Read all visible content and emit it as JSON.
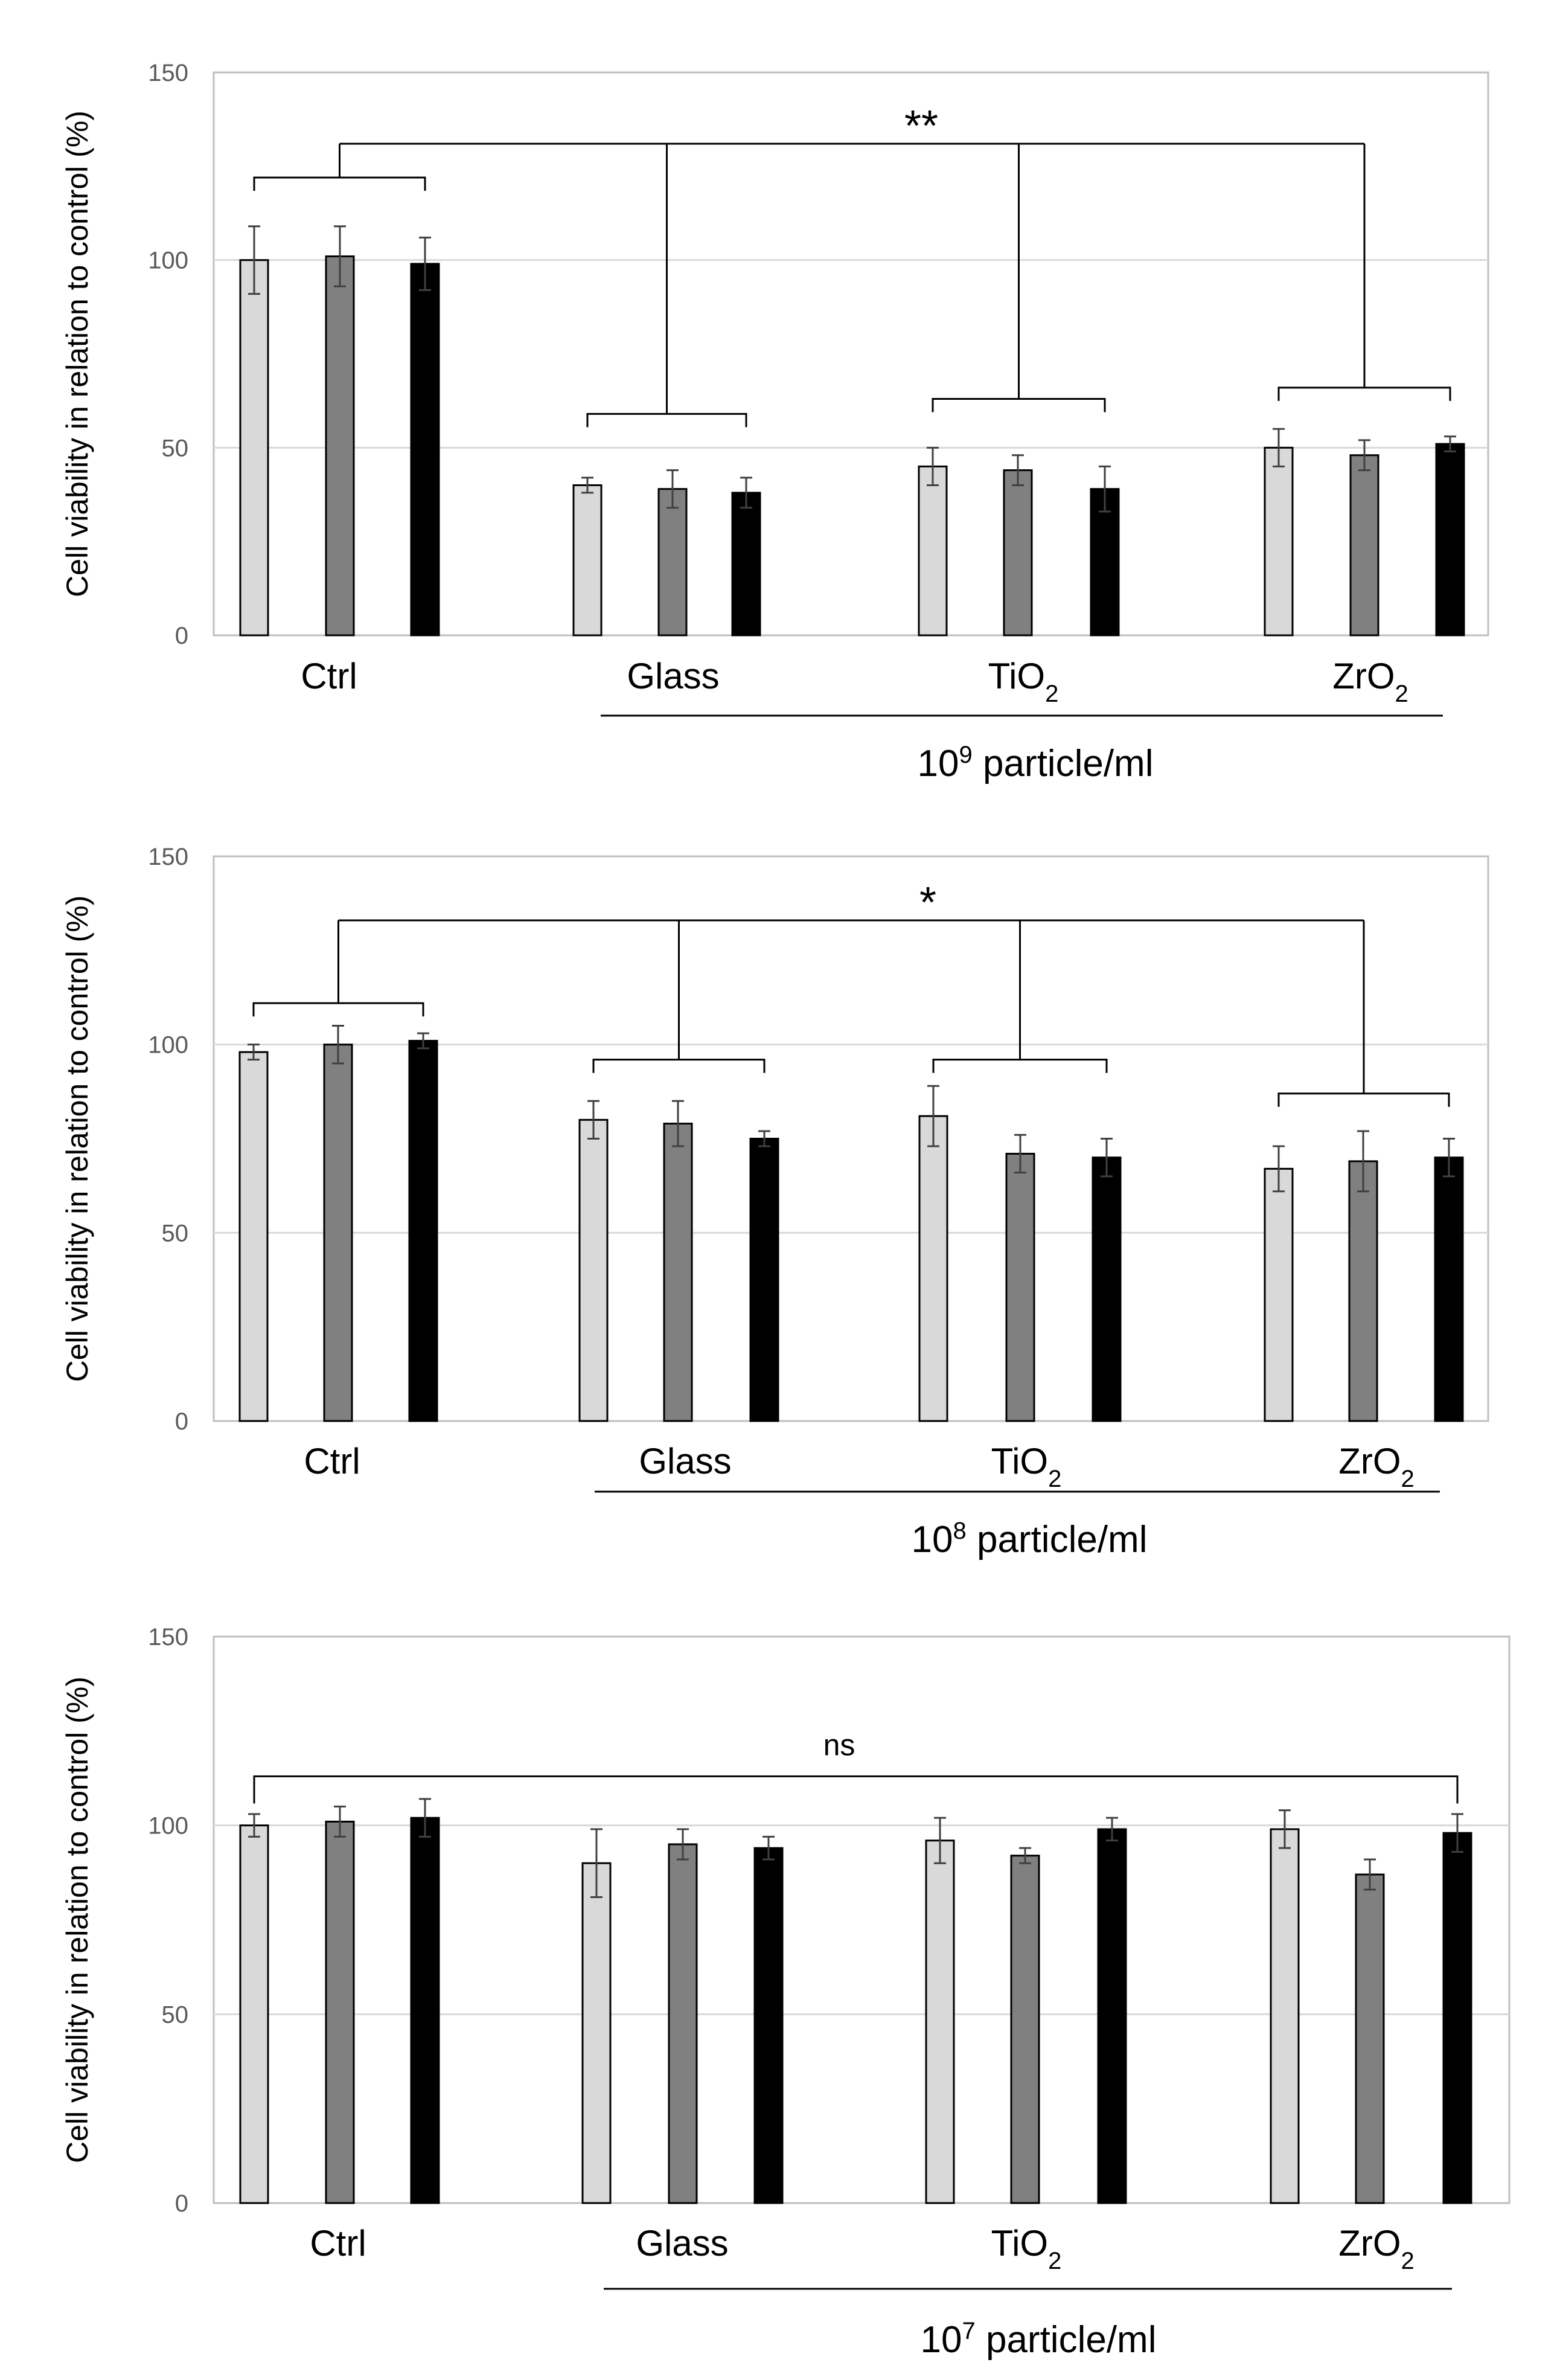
{
  "chart_data": [
    {
      "type": "bar",
      "ylabel": "Cell viability in relation to control (%)",
      "ylim": [
        0,
        150
      ],
      "yticks": [
        "0",
        "50",
        "100",
        "150"
      ],
      "grid": true,
      "series_colors": [
        "#d9d9d9",
        "#808080",
        "#000000"
      ],
      "categories": [
        {
          "label": "Ctrl",
          "sub": ""
        },
        {
          "label": "Glass",
          "sub": ""
        },
        {
          "label": "TiO",
          "sub": "2"
        },
        {
          "label": "ZrO",
          "sub": "2"
        }
      ],
      "values": [
        [
          100,
          101,
          99
        ],
        [
          40,
          39,
          38
        ],
        [
          45,
          44,
          39
        ],
        [
          50,
          48,
          51
        ]
      ],
      "errors": [
        [
          9,
          8,
          7
        ],
        [
          2,
          5,
          4
        ],
        [
          5,
          4,
          6
        ],
        [
          5,
          4,
          2
        ]
      ],
      "concentration": {
        "base": "10",
        "exp": "9",
        "unit": " particle/ml"
      },
      "significance": {
        "label": "**",
        "mode": "hier",
        "top": 131,
        "ctrlBracket": 122,
        "groupBrackets": [
          null,
          59,
          63,
          66
        ]
      }
    },
    {
      "type": "bar",
      "ylabel": "Cell viability in relation to control (%)",
      "ylim": [
        0,
        150
      ],
      "yticks": [
        "0",
        "50",
        "100",
        "150"
      ],
      "grid": true,
      "series_colors": [
        "#d9d9d9",
        "#808080",
        "#000000"
      ],
      "categories": [
        {
          "label": "Ctrl",
          "sub": ""
        },
        {
          "label": "Glass",
          "sub": ""
        },
        {
          "label": "TiO",
          "sub": "2"
        },
        {
          "label": "ZrO",
          "sub": "2"
        }
      ],
      "values": [
        [
          98,
          100,
          101
        ],
        [
          80,
          79,
          75
        ],
        [
          81,
          71,
          70
        ],
        [
          67,
          69,
          70
        ]
      ],
      "errors": [
        [
          2,
          5,
          2
        ],
        [
          5,
          6,
          2
        ],
        [
          8,
          5,
          5
        ],
        [
          6,
          8,
          5
        ]
      ],
      "concentration": {
        "base": "10",
        "exp": "8",
        "unit": " particle/ml"
      },
      "significance": {
        "label": "*",
        "mode": "hier",
        "top": 133,
        "ctrlBracket": 111,
        "groupBrackets": [
          null,
          96,
          96,
          87
        ]
      }
    },
    {
      "type": "bar",
      "ylabel": "Cell viability in relation to control (%)",
      "ylim": [
        0,
        150
      ],
      "yticks": [
        "0",
        "50",
        "100",
        "150"
      ],
      "grid": true,
      "series_colors": [
        "#d9d9d9",
        "#808080",
        "#000000"
      ],
      "categories": [
        {
          "label": "Ctrl",
          "sub": ""
        },
        {
          "label": "Glass",
          "sub": ""
        },
        {
          "label": "TiO",
          "sub": "2"
        },
        {
          "label": "ZrO",
          "sub": "2"
        }
      ],
      "values": [
        [
          100,
          101,
          102
        ],
        [
          90,
          95,
          94
        ],
        [
          96,
          92,
          99
        ],
        [
          99,
          87,
          98
        ]
      ],
      "errors": [
        [
          3,
          4,
          5
        ],
        [
          9,
          4,
          3
        ],
        [
          6,
          2,
          3
        ],
        [
          5,
          4,
          5
        ]
      ],
      "concentration": {
        "base": "10",
        "exp": "7",
        "unit": " particle/ml"
      },
      "significance": {
        "label": "ns",
        "mode": "span",
        "top": 113
      }
    }
  ]
}
